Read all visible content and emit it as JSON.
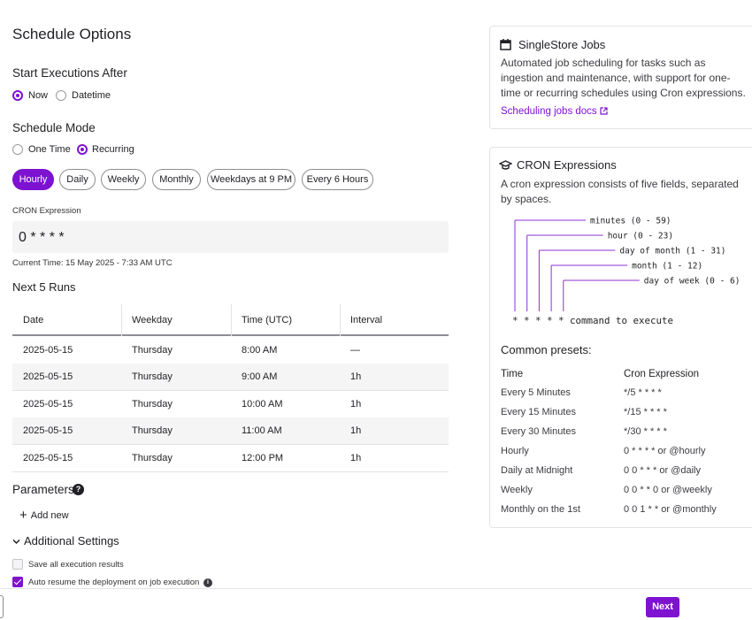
{
  "form": {
    "title": "Schedule Options",
    "start": {
      "heading": "Start Executions After",
      "options": [
        "Now",
        "Datetime"
      ],
      "selected": 0
    },
    "mode": {
      "heading": "Schedule Mode",
      "options": [
        "One Time",
        "Recurring"
      ],
      "selected": 1
    },
    "presets": {
      "options": [
        "Hourly",
        "Daily",
        "Weekly",
        "Monthly",
        "Weekdays at 9 PM",
        "Every 6 Hours"
      ],
      "selected": 0
    },
    "cron_label": "CRON Expression",
    "cron_value": "0 * * * *",
    "current_time": "Current Time: 15 May 2025 - 7:33 AM UTC",
    "runs": {
      "heading": "Next 5 Runs",
      "columns": [
        "Date",
        "Weekday",
        "Time (UTC)",
        "Interval"
      ],
      "rows": [
        [
          "2025-05-15",
          "Thursday",
          "8:00 AM",
          "—"
        ],
        [
          "2025-05-15",
          "Thursday",
          "9:00 AM",
          "1h"
        ],
        [
          "2025-05-15",
          "Thursday",
          "10:00 AM",
          "1h"
        ],
        [
          "2025-05-15",
          "Thursday",
          "11:00 AM",
          "1h"
        ],
        [
          "2025-05-15",
          "Thursday",
          "12:00 PM",
          "1h"
        ]
      ]
    },
    "parameters": {
      "heading": "Parameters",
      "add": "Add new"
    },
    "additional": {
      "heading": "Additional Settings",
      "checkboxes": [
        {
          "label": "Save all execution results",
          "checked": false
        },
        {
          "label": "Auto resume the deployment on job execution",
          "checked": true
        }
      ]
    },
    "next": "Next"
  },
  "sidebar": {
    "jobs": {
      "title": "SingleStore Jobs",
      "text": "Automated job scheduling for tasks such as ingestion and maintenance, with support for one-time or recurring schedules using Cron expressions.",
      "link": "Scheduling jobs docs"
    },
    "cron": {
      "title": "CRON Expressions",
      "text": "A cron expression consists of five fields, separated by spaces.",
      "fields": [
        "minutes (0 - 59)",
        "hour (0 - 23)",
        "day of month (1 - 31)",
        "month (1 - 12)",
        "day of week (0 - 6)"
      ],
      "command": "* * * * * command to execute",
      "presets_heading": "Common presets:",
      "columns": [
        "Time",
        "Cron Expression"
      ],
      "rows": [
        [
          "Every 5 Minutes",
          "*/5 * * * *"
        ],
        [
          "Every 15 Minutes",
          "*/15 * * * *"
        ],
        [
          "Every 30 Minutes",
          "*/30 * * * *"
        ],
        [
          "Hourly",
          "0 * * * * or @hourly"
        ],
        [
          "Daily at Midnight",
          "0 0 * * * or @daily"
        ],
        [
          "Weekly",
          "0 0 * * 0 or @weekly"
        ],
        [
          "Monthly on the 1st",
          "0 0 1 * * or @monthly"
        ]
      ]
    }
  }
}
